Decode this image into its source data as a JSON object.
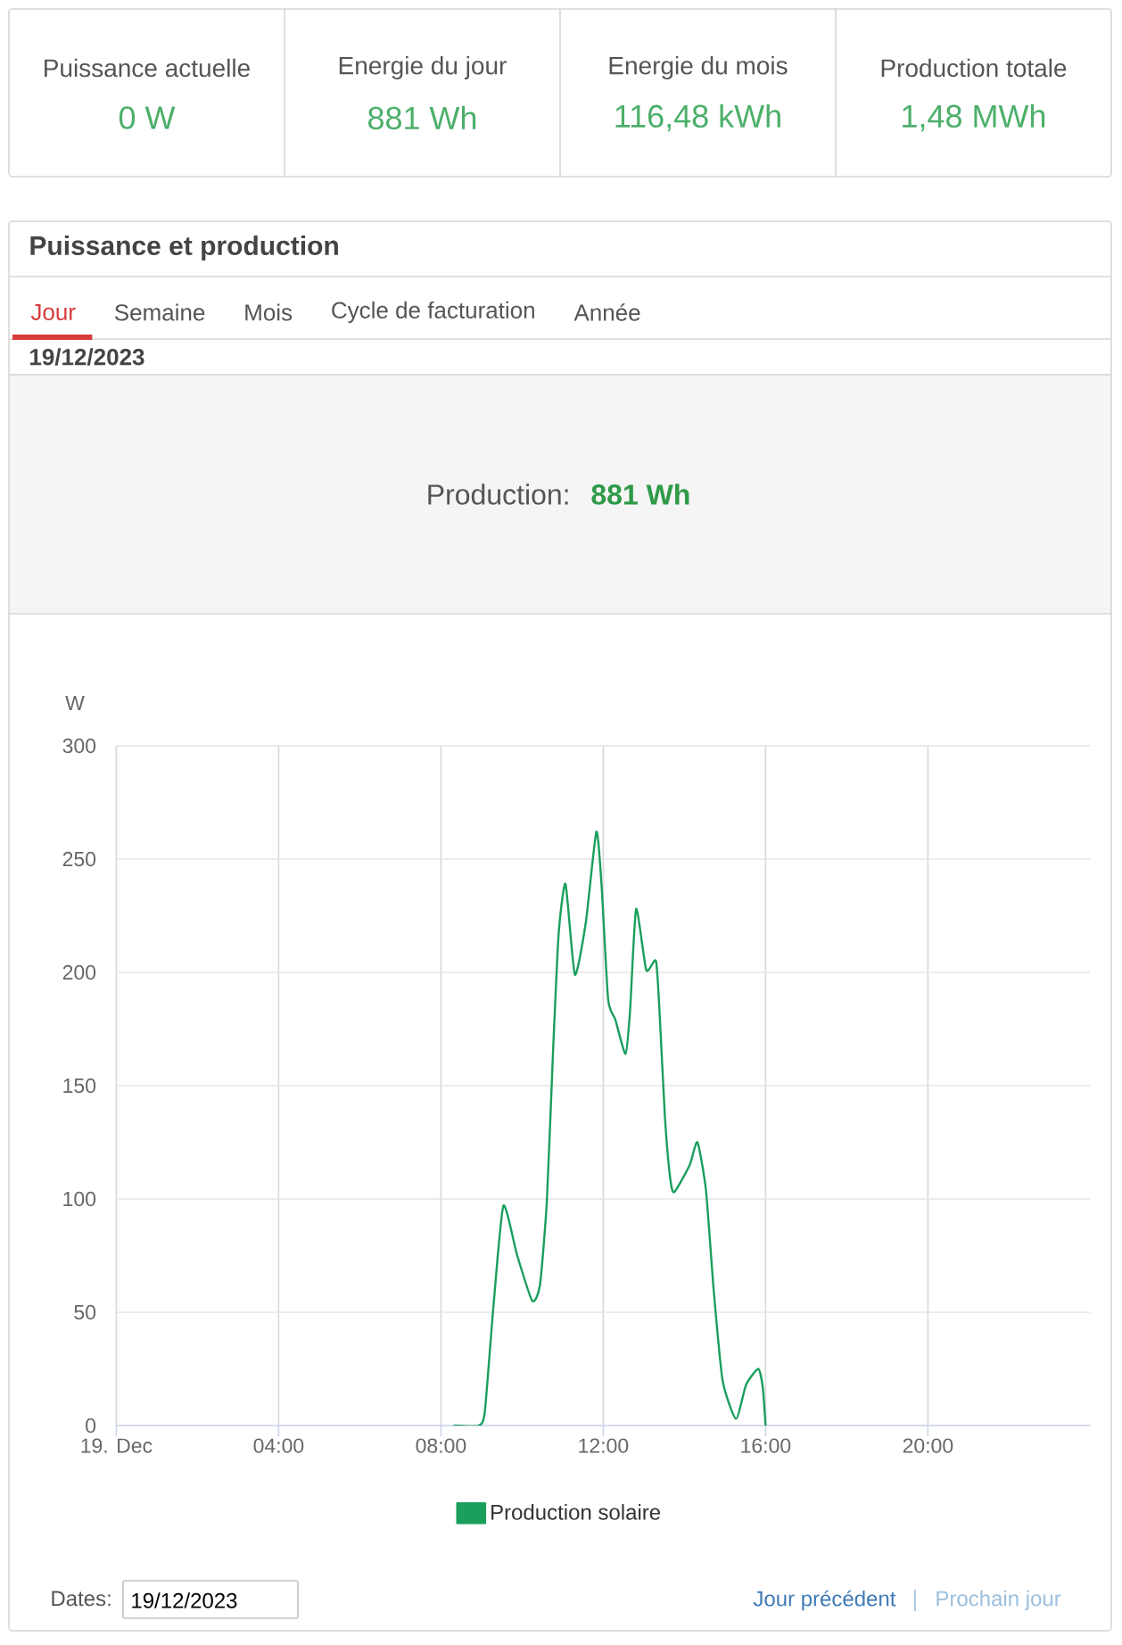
{
  "chart_data": [
    {
      "type": "other",
      "annotations": [
        "Puissance actuelle",
        "0 W",
        "Energie du jour",
        "881 Wh",
        "Energie du mois",
        "116,48 kWh",
        "Production totale",
        "1,48 MWh"
      ]
    },
    {
      "type": "line",
      "title": "Puissance et production",
      "subtitle": "19/12/2023",
      "ylabel": "W",
      "annotations": [
        "Jour",
        "Semaine",
        "Mois",
        "Cycle de facturation",
        "Année",
        "Production:",
        "881 Wh",
        "Dates:",
        "19/12/2023",
        "Jour précédent",
        "Prochain jour"
      ],
      "x": [
        8.33,
        8.93,
        9.08,
        9.3,
        9.54,
        9.88,
        10.25,
        10.44,
        10.61,
        10.76,
        10.9,
        11.07,
        11.3,
        11.57,
        11.83,
        11.96,
        12.12,
        12.3,
        12.55,
        12.66,
        12.81,
        13.06,
        13.3,
        13.4,
        13.52,
        13.65,
        13.75,
        14.13,
        14.32,
        14.53,
        14.72,
        14.94,
        15.27,
        15.52,
        15.82,
        15.93,
        16.0
      ],
      "series": [
        {
          "name": "Production solaire",
          "color": "#1a9f5c",
          "values": [
            0,
            0,
            6,
            54,
            97,
            75,
            55,
            62,
            99,
            164,
            217,
            239,
            199,
            222,
            262,
            238,
            188,
            179,
            164,
            183,
            228,
            201,
            205,
            178,
            136,
            109,
            103,
            115,
            125,
            104,
            60,
            20,
            3,
            18,
            25,
            17,
            0
          ]
        }
      ],
      "xlim": [
        0,
        24
      ],
      "xticks": [
        {
          "value": 0,
          "label": "19. Dec"
        },
        {
          "value": 4,
          "label": "04:00"
        },
        {
          "value": 8,
          "label": "08:00"
        },
        {
          "value": 12,
          "label": "12:00"
        },
        {
          "value": 16,
          "label": "16:00"
        },
        {
          "value": 20,
          "label": "20:00"
        }
      ],
      "ylim": [
        0,
        300
      ],
      "yticks": [
        0,
        50,
        100,
        150,
        200,
        250,
        300
      ],
      "grid": true,
      "legend": "bottom",
      "line_style": "solid"
    }
  ]
}
